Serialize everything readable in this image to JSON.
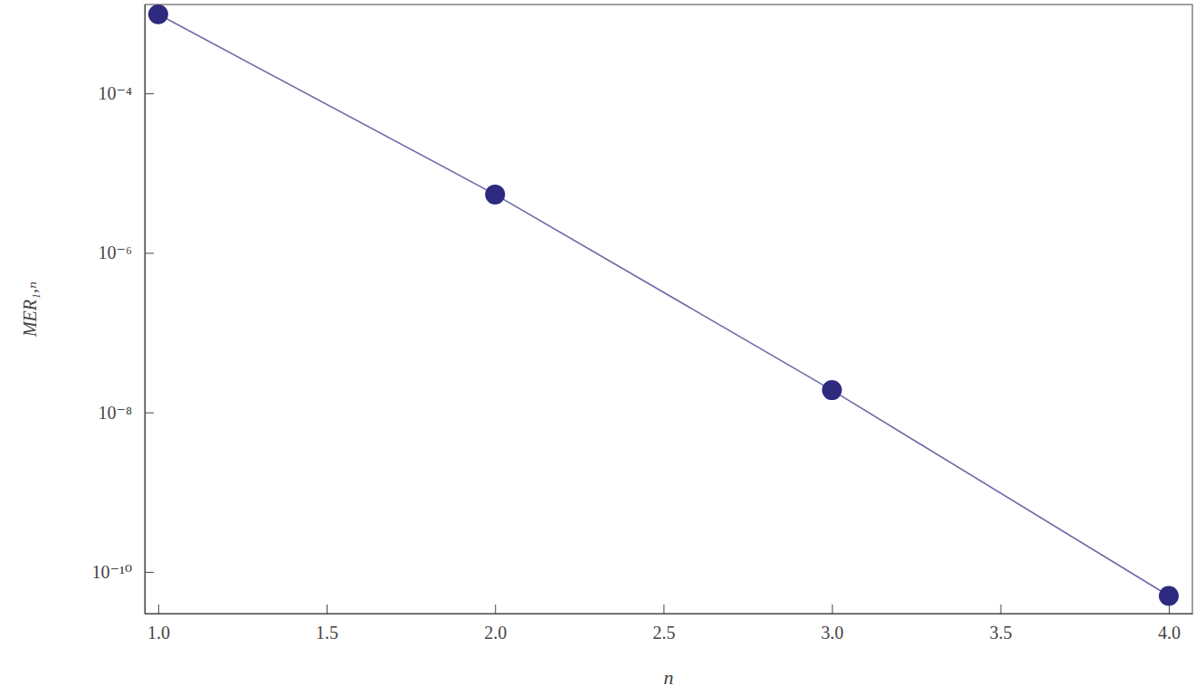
{
  "chart_data": {
    "type": "line",
    "x_label": "n",
    "y_label": "MER₁,ₙ",
    "x": [
      1,
      2,
      3,
      4
    ],
    "series": [
      {
        "color": "#2e2a80",
        "values": [
          0.00098,
          5.4e-06,
          1.9e-08,
          5e-11
        ]
      }
    ],
    "marker": "circle",
    "line_style": "solid",
    "log": "y",
    "xlim": [
      0.96,
      4.07
    ],
    "ylim": [
      3e-11,
      0.0013
    ],
    "xticks": [
      {
        "value": 1,
        "label": "1.0"
      },
      {
        "value": 1.5,
        "label": "1.5"
      },
      {
        "value": 2,
        "label": "2.0"
      },
      {
        "value": 2.5,
        "label": "2.5"
      },
      {
        "value": 3,
        "label": "3.0"
      },
      {
        "value": 3.5,
        "label": "3.5"
      },
      {
        "value": 4,
        "label": "4.0"
      }
    ],
    "yticks": [
      {
        "value": 0.0001,
        "label": "10⁻⁴"
      },
      {
        "value": 1e-06,
        "label": "10⁻⁶"
      },
      {
        "value": 1e-08,
        "label": "10⁻⁸"
      },
      {
        "value": 1e-10,
        "label": "10⁻¹⁰"
      }
    ]
  }
}
